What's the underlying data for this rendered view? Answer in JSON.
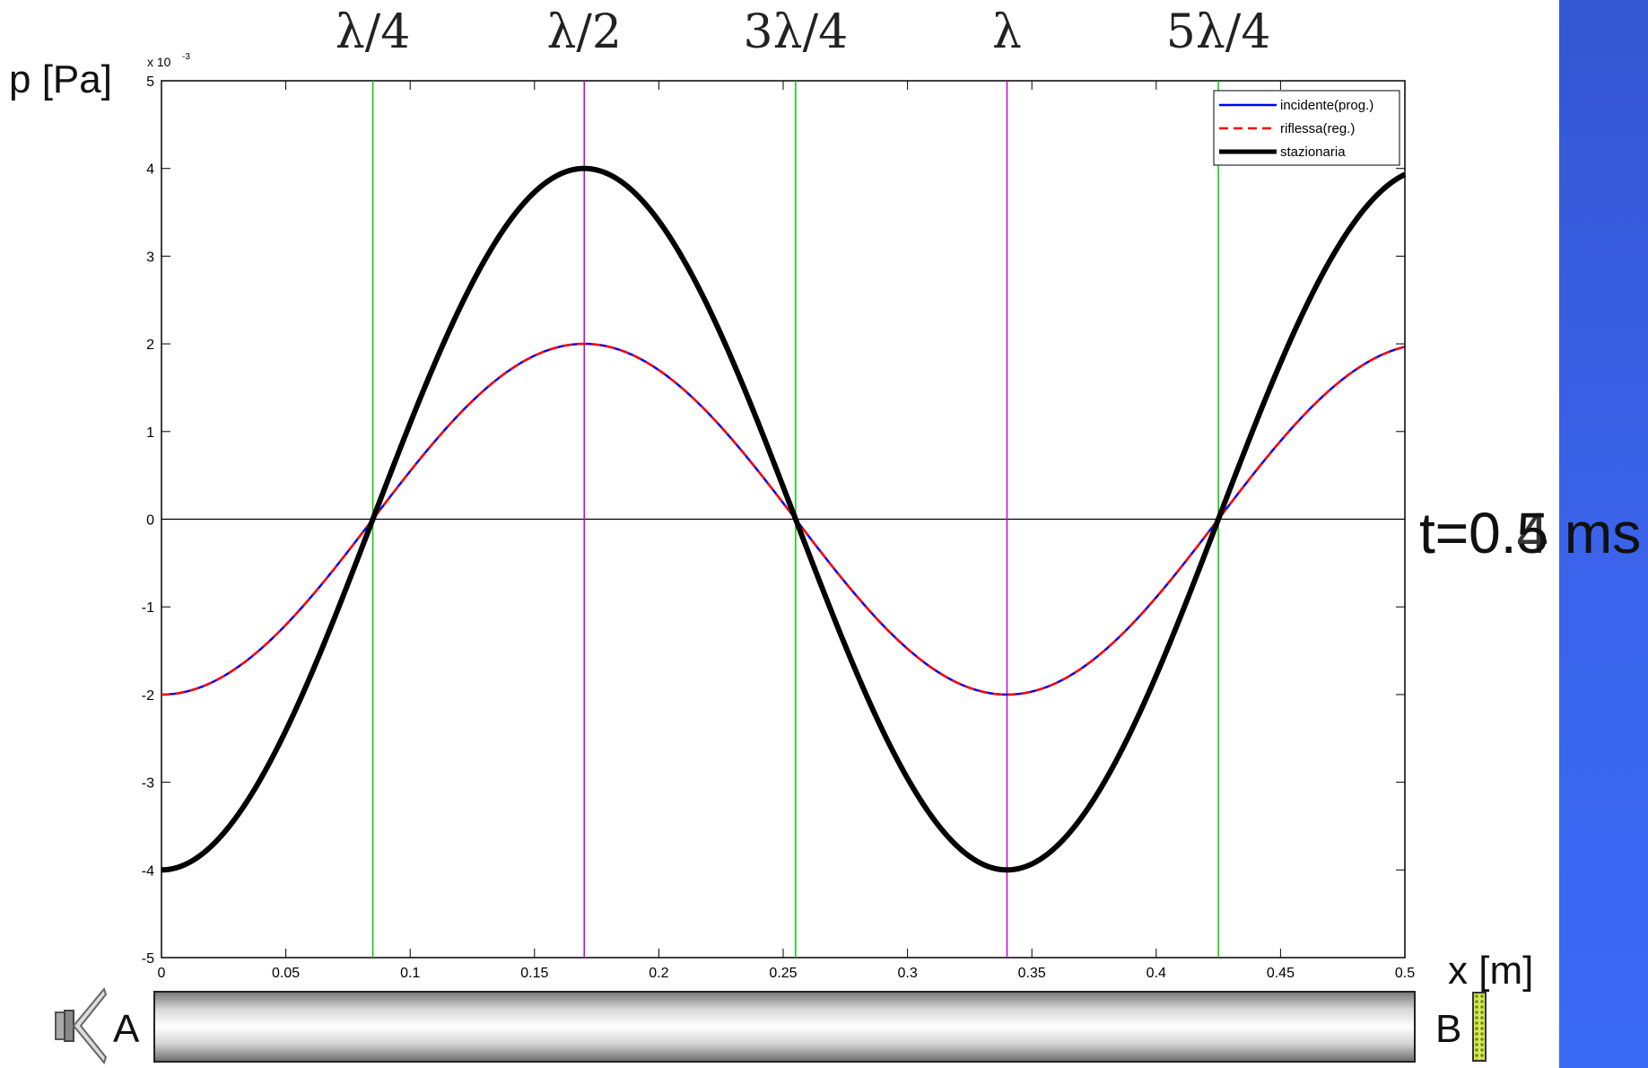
{
  "colors": {
    "incident": "#0000ff",
    "reflected": "#ff0000",
    "standing": "#000000",
    "quarter_lines": "#00cc00",
    "half_lines": "#cc00cc",
    "side_bar": "#3a63ea"
  },
  "wavelength_labels": [
    {
      "text": "λ/4",
      "x": 0.085
    },
    {
      "text": "λ/2",
      "x": 0.17
    },
    {
      "text": "3λ/4",
      "x": 0.255
    },
    {
      "text": "λ",
      "x": 0.34
    },
    {
      "text": "5λ/4",
      "x": 0.425
    }
  ],
  "ylabel": "p [Pa]",
  "xlabel": "x [m]",
  "time_label": "t=0.5 ms",
  "time_label_ghost": "t=0.4 ms",
  "tube": {
    "left_label": "A",
    "right_label": "B"
  },
  "chart_data": {
    "type": "line",
    "title": "",
    "xlabel": "x [m]",
    "ylabel": "p [Pa]",
    "y_exponent_label": "x 10",
    "y_exponent_power": "-3",
    "xlim": [
      0,
      0.5
    ],
    "ylim": [
      -0.005,
      0.005
    ],
    "xticks": [
      0,
      0.05,
      0.1,
      0.15,
      0.2,
      0.25,
      0.3,
      0.35,
      0.4,
      0.45,
      0.5
    ],
    "xtick_labels": [
      "0",
      "0.05",
      "0.1",
      "0.15",
      "0.2",
      "0.25",
      "0.3",
      "0.35",
      "0.4",
      "0.45",
      "0.5"
    ],
    "yticks": [
      -0.005,
      -0.004,
      -0.003,
      -0.002,
      -0.001,
      0,
      0.001,
      0.002,
      0.003,
      0.004,
      0.005
    ],
    "ytick_labels": [
      "-5",
      "-4",
      "-3",
      "-2",
      "-1",
      "0",
      "1",
      "2",
      "3",
      "4",
      "5"
    ],
    "grid": false,
    "legend_position": "top-right",
    "wavelength": 0.34,
    "series": [
      {
        "name": "incidente(prog.)",
        "style": "solid",
        "x": [
          0,
          0.0425,
          0.085,
          0.1275,
          0.17,
          0.2125,
          0.255,
          0.2975,
          0.34,
          0.3825,
          0.425,
          0.4675,
          0.5
        ],
        "y": [
          -0.002,
          -0.00141,
          0,
          0.00141,
          0.002,
          0.00141,
          0,
          -0.00141,
          -0.002,
          -0.00141,
          0,
          0.00141,
          0.00197
        ]
      },
      {
        "name": "riflessa(reg.)",
        "style": "dashed",
        "x": [
          0,
          0.0425,
          0.085,
          0.1275,
          0.17,
          0.2125,
          0.255,
          0.2975,
          0.34,
          0.3825,
          0.425,
          0.4675,
          0.5
        ],
        "y": [
          -0.002,
          -0.00141,
          0,
          0.00141,
          0.002,
          0.00141,
          0,
          -0.00141,
          -0.002,
          -0.00141,
          0,
          0.00141,
          0.00197
        ]
      },
      {
        "name": "stazionaria",
        "style": "thick",
        "x": [
          0,
          0.0425,
          0.085,
          0.1275,
          0.17,
          0.2125,
          0.255,
          0.2975,
          0.34,
          0.3825,
          0.425,
          0.4675,
          0.5
        ],
        "y": [
          -0.004,
          -0.00283,
          0,
          0.00283,
          0.004,
          0.00283,
          0,
          -0.00283,
          -0.004,
          -0.00283,
          0,
          0.00283,
          0.00393
        ]
      }
    ],
    "vertical_lines": [
      {
        "x": 0.085,
        "kind": "quarter"
      },
      {
        "x": 0.17,
        "kind": "half"
      },
      {
        "x": 0.255,
        "kind": "quarter"
      },
      {
        "x": 0.34,
        "kind": "half"
      },
      {
        "x": 0.425,
        "kind": "quarter"
      }
    ]
  }
}
